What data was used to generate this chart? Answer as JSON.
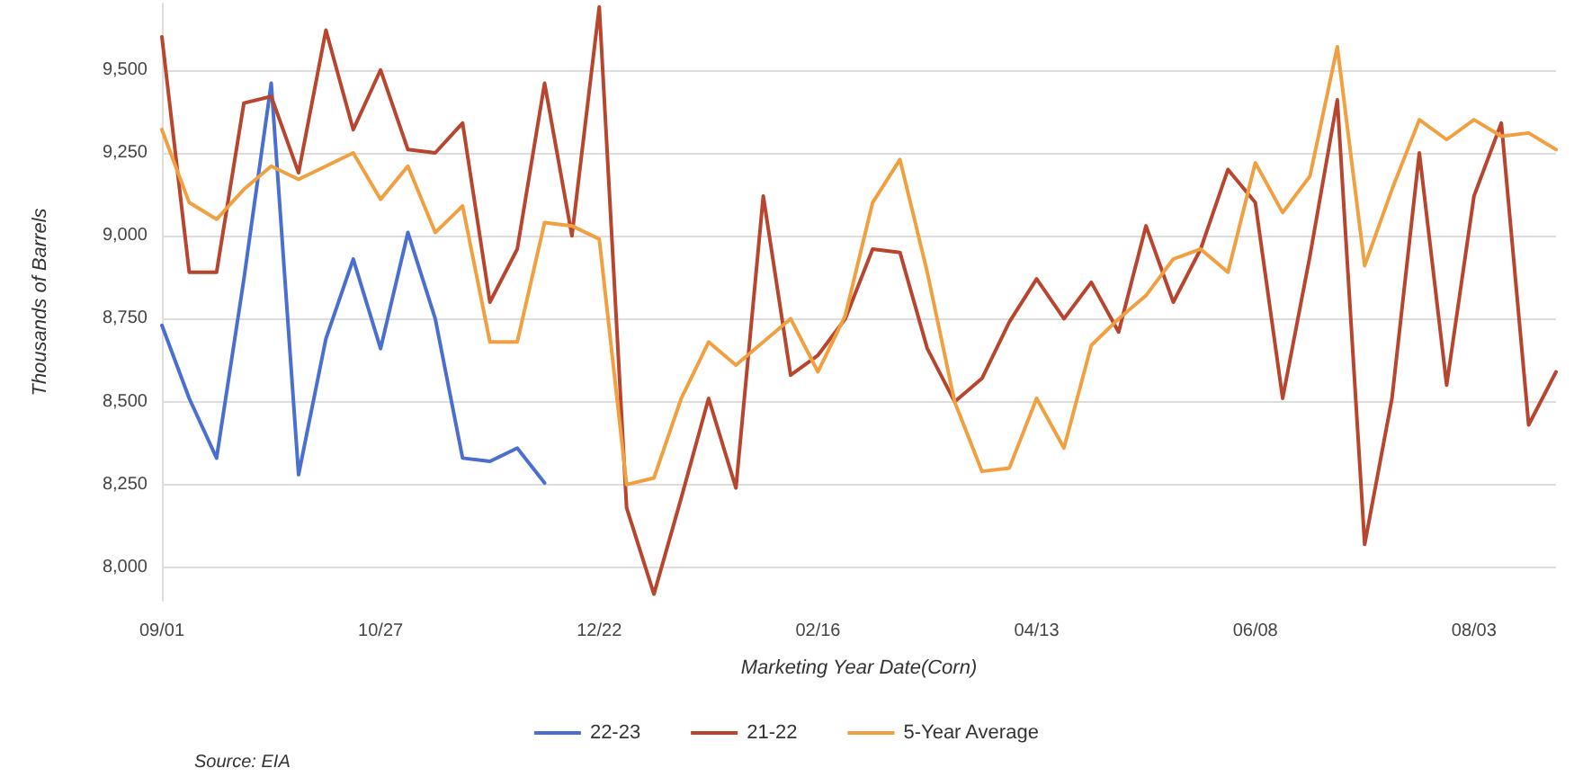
{
  "chart_data": {
    "type": "line",
    "xlabel": "Marketing Year Date(Corn)",
    "ylabel": "Thousands of Barrels",
    "annotations": [
      "Source: EIA"
    ],
    "categories": [
      "09/01",
      null,
      null,
      null,
      null,
      null,
      null,
      null,
      "10/27",
      null,
      null,
      null,
      null,
      null,
      null,
      null,
      "12/22",
      null,
      null,
      null,
      null,
      null,
      null,
      null,
      "02/16",
      null,
      null,
      null,
      null,
      null,
      null,
      null,
      "04/13",
      null,
      null,
      null,
      null,
      null,
      null,
      null,
      "06/08",
      null,
      null,
      null,
      null,
      null,
      null,
      null,
      "08/03",
      null,
      null,
      null
    ],
    "series": [
      {
        "name": "22-23",
        "color": "#4a6fd1",
        "values": [
          8730,
          8510,
          8330,
          8870,
          9460,
          8280,
          8690,
          8930,
          8660,
          9010,
          8750,
          8330,
          8320,
          8360,
          8255,
          null,
          null,
          null,
          null,
          null,
          null,
          null,
          null,
          null,
          null,
          null,
          null,
          null,
          null,
          null,
          null,
          null,
          null,
          null,
          null,
          null,
          null,
          null,
          null,
          null,
          null,
          null,
          null,
          null,
          null,
          null,
          null,
          null,
          null,
          null,
          null,
          null
        ]
      },
      {
        "name": "21-22",
        "color": "#b8452e",
        "values": [
          9600,
          8890,
          8890,
          9400,
          9420,
          9190,
          9620,
          9320,
          9500,
          9260,
          9250,
          9340,
          8800,
          8960,
          9460,
          9000,
          9690,
          8180,
          7920,
          8210,
          8510,
          8240,
          9120,
          8580,
          8640,
          8750,
          8960,
          8950,
          8660,
          8500,
          8570,
          8740,
          8870,
          8750,
          8860,
          8710,
          9030,
          8800,
          8960,
          9200,
          9100,
          8510,
          8940,
          9410,
          8070,
          8510,
          9250,
          8550,
          9120,
          9340,
          8430,
          8590
        ]
      },
      {
        "name": "5-Year Average",
        "color": "#f0a040",
        "values": [
          9320,
          9100,
          9050,
          9140,
          9210,
          9170,
          9210,
          9250,
          9110,
          9210,
          9010,
          9090,
          8680,
          8680,
          9040,
          9030,
          8990,
          8250,
          8270,
          8510,
          8680,
          8610,
          8680,
          8750,
          8590,
          8760,
          9100,
          9230,
          8890,
          8500,
          8290,
          8300,
          8510,
          8360,
          8670,
          8750,
          8820,
          8930,
          8960,
          8890,
          9220,
          9070,
          9180,
          9570,
          8910,
          9140,
          9350,
          9290,
          9350,
          9300,
          9310,
          9260
        ]
      }
    ],
    "ylim": [
      7900,
      9700
    ],
    "yticks": [
      {
        "value": 8000,
        "label": "8,000"
      },
      {
        "value": 8250,
        "label": "8,250"
      },
      {
        "value": 8500,
        "label": "8,500"
      },
      {
        "value": 8750,
        "label": "8,750"
      },
      {
        "value": 9000,
        "label": "9,000"
      },
      {
        "value": 9250,
        "label": "9,250"
      },
      {
        "value": 9500,
        "label": "9,500"
      }
    ],
    "grid": "y",
    "legend": "bottom",
    "marker": "none",
    "line_style": "solid"
  }
}
